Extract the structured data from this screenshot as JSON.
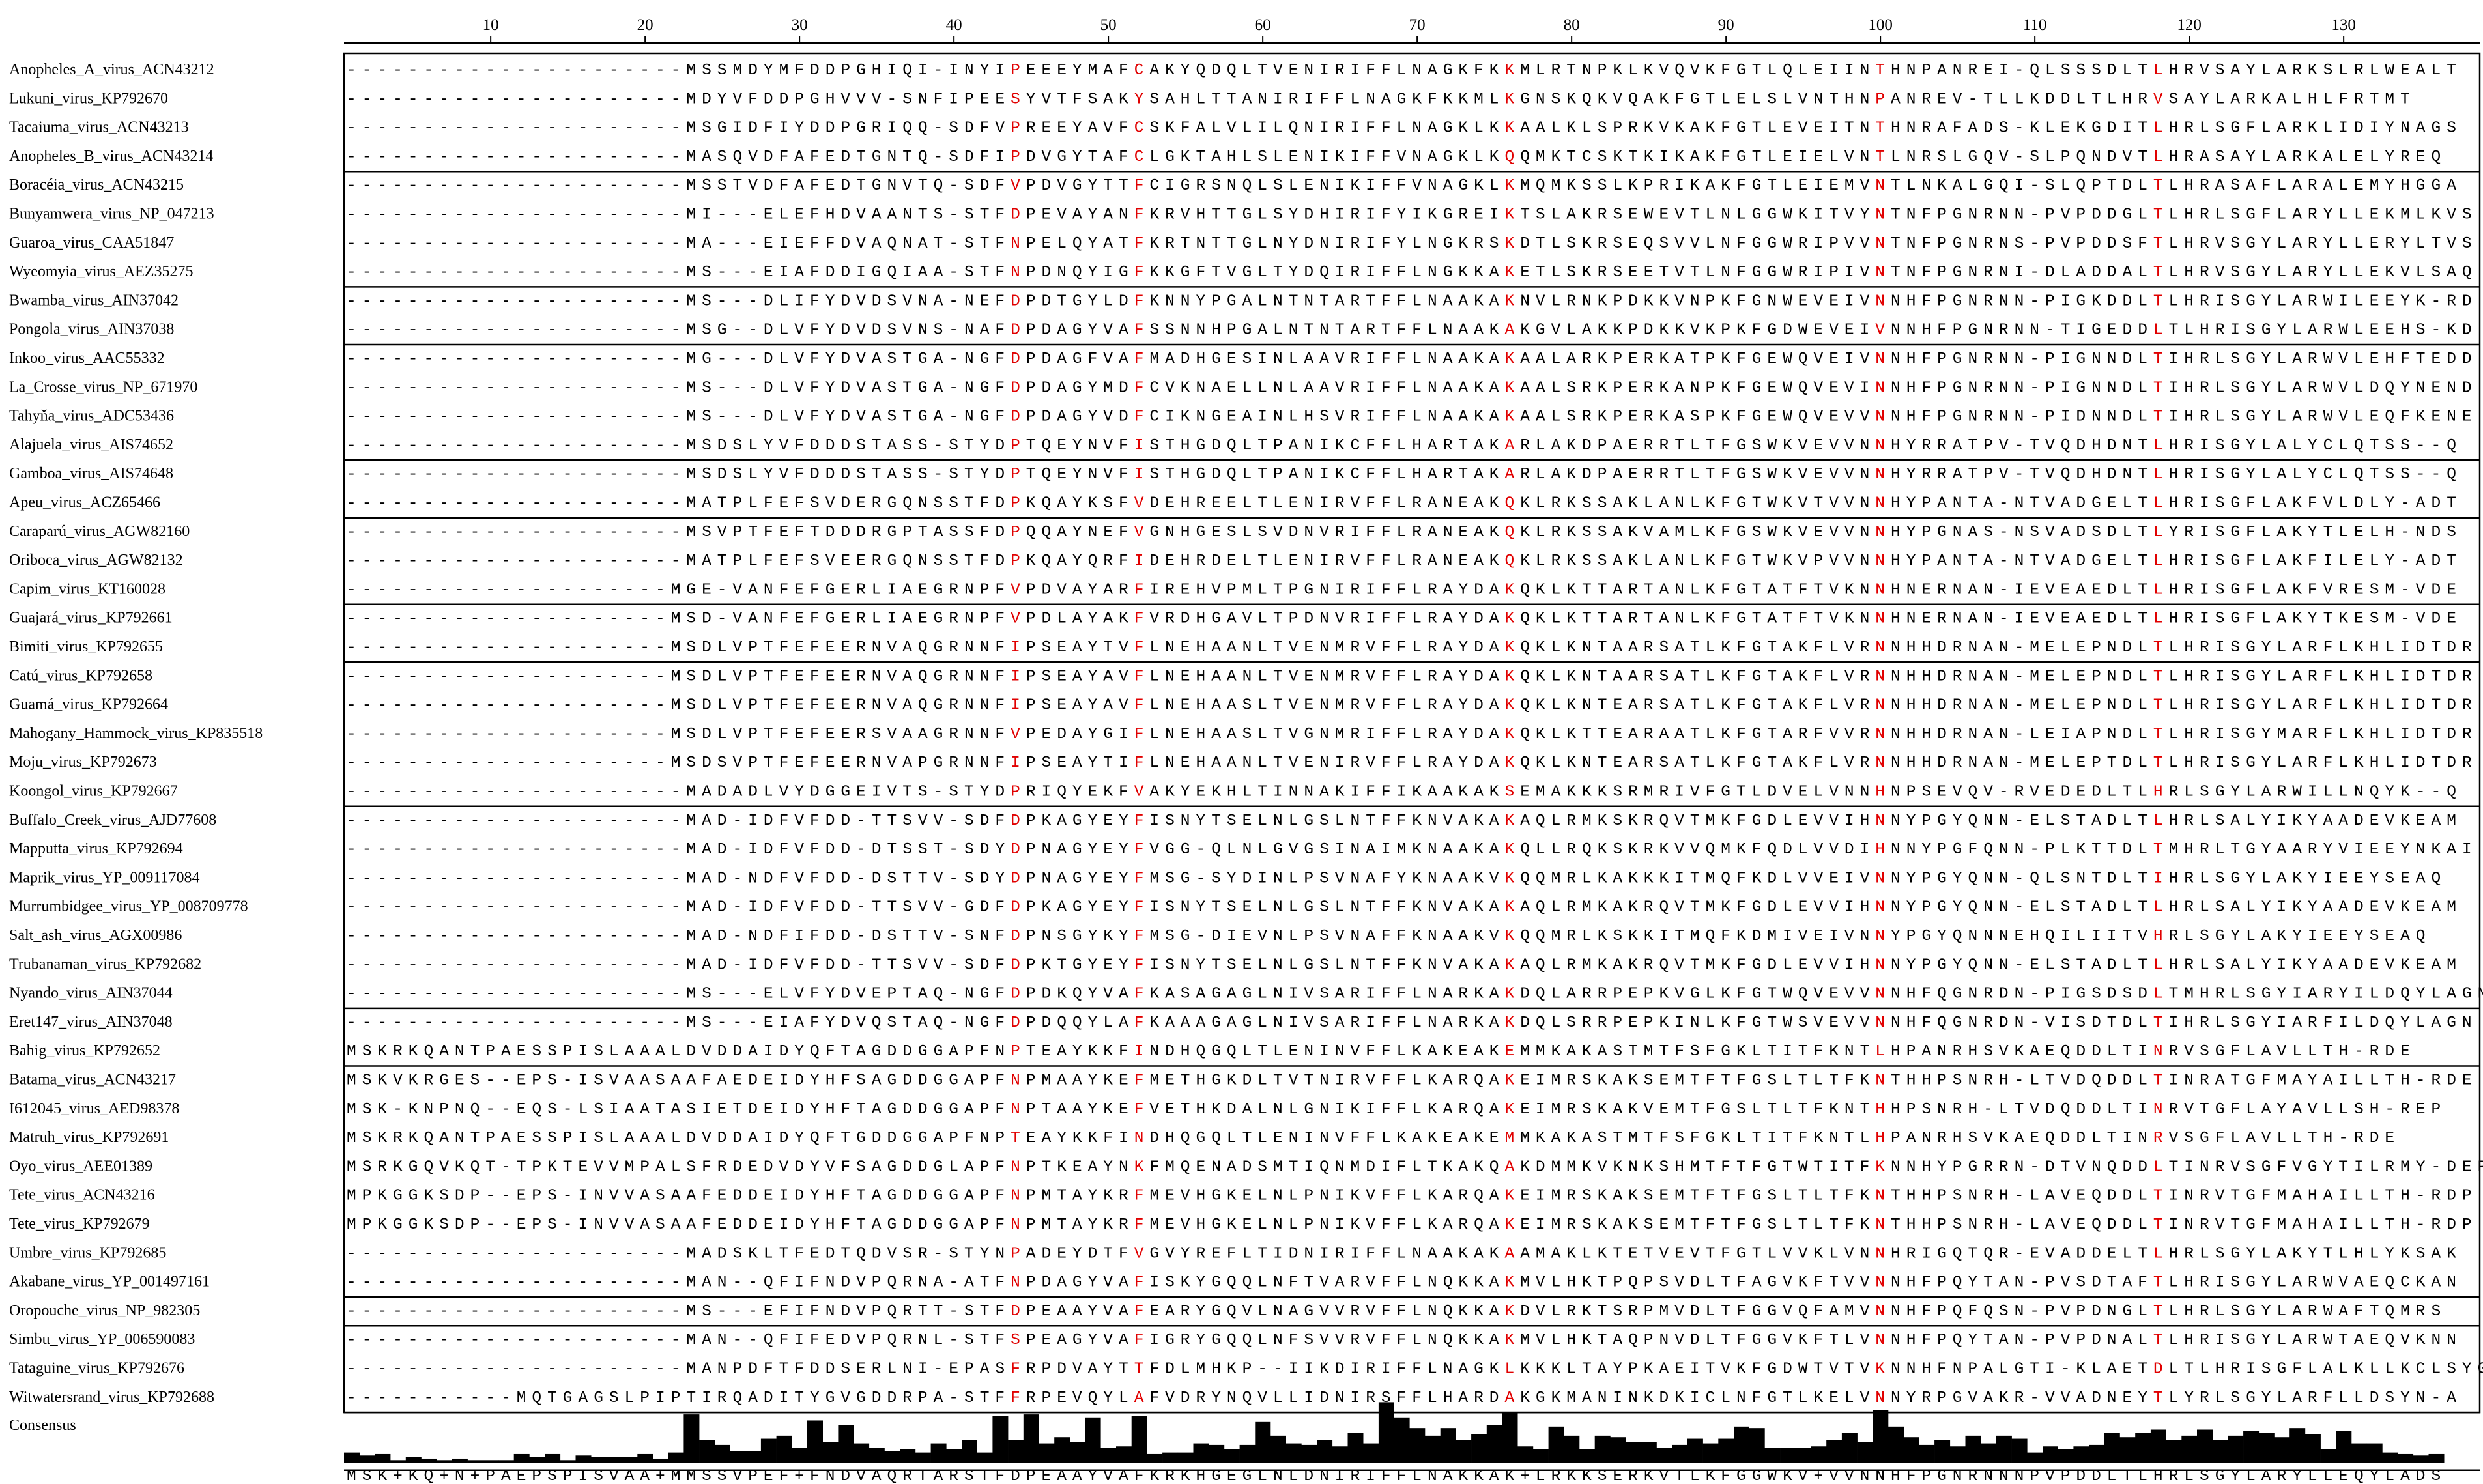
{
  "ruler": {
    "labels": [
      "10",
      "20",
      "30",
      "40",
      "50",
      "60",
      "70",
      "80",
      "90",
      "100",
      "110",
      "120",
      "130"
    ]
  },
  "consensus_label": "Consensus",
  "consensus_sequence": "MSK+KQ+N+PAEPSPISVAA+MMSSVPEF+FNDVAQRTARSTFDPEAAYVAFKRKHGEGLNLDNIRIFFLNAKKAK+LRKKSERKVTLKFGGWKV+VVNNHFPGNRNNNPVPDDLTLHRLSGYLARYLLEQYLADS",
  "highlight_columns": [
    44,
    52,
    76,
    100,
    118
  ],
  "group_breaks": [
    4,
    8,
    10,
    14,
    16,
    19,
    21,
    26,
    33,
    35,
    43,
    44,
    47,
    49
  ],
  "sequences": [
    {
      "name": "Anopheles_A_virus_ACN43212",
      "seq": "----------------------MSSMDYMFDDPGHIQI-INYIPEEEYMAFCAKYQDQLTVENIRIFFLNAGKFKKMLRTNPKLKVQVKFGTLQLEIINTHNPANREI-QLSSSDLTLHRVSAYLARKSLRLWEALT"
    },
    {
      "name": "Lukuni_virus_KP792670",
      "seq": "----------------------MDYVFDDPGHVVV-SNFIPEESYVTFSAKYSAHLTTANIRIFFLNAGKFKKMLKGNSKQKVQAKFGTLELSLVNTHNPANREV-TLLKDDLTLHRVSAYLARKALHLFRTMT"
    },
    {
      "name": "Tacaiuma_virus_ACN43213",
      "seq": "----------------------MSGIDFIYDDPGRIQQ-SDFVPREEYAVFCSKFALVLILQNIRIFFLNAGKLKKAALKLSPRKVKAKFGTLEVEITNTHNRAFADS-KLEKGDITLHRLSGFLARKLIDIYNAGS"
    },
    {
      "name": "Anopheles_B_virus_ACN43214",
      "seq": "----------------------MASQVDFAFEDTGNTQ-SDFIPDVGYTAFCLGKTAHLSLENIKIFFVNAGKLKQQMKTCSKTKIKAKFGTLEIELVNTLNRSLGQV-SLPQNDVTLHRASAYLARKALELYREQ"
    },
    {
      "name": "Boracéia_virus_ACN43215",
      "seq": "----------------------MSSTVDFAFEDTGNVTQ-SDFVPDVGYTTFCIGRSNQLSLENIKIFFVNAGKLKMQMKSSLKPRIKAKFGTLEIEMVNTLNKALGQI-SLQPTDLTLHRASAFLARALEMYHGGA"
    },
    {
      "name": "Bunyamwera_virus_NP_047213",
      "seq": "----------------------MI---ELEFHDVAANTS-STFDPEVAYANFKRVHTTGLSYDHIRIFYIKGREIKTSLAKRSEWEVTLNLGGWKITVYNTNFPGNRNN-PVPDDGLTLHRLSGFLARYLLEKMLKVS"
    },
    {
      "name": "Guaroa_virus_CAA51847",
      "seq": "----------------------MA---EIEFFDVAQNAT-STFNPELQYATFKRTNTTGLNYDNIRIFYLNGKRSKDTLSKRSEQSVVLNFGGWRIPVVNTNFPGNRNS-PVPDDSFTLHRVSGYLARYLLERYLTVS"
    },
    {
      "name": "Wyeomyia_virus_AEZ35275",
      "seq": "----------------------MS---EIAFDDIGQIAA-STFNPDNQYIGFKKGFTVGLTYDQIRIFFLNGKKAKETLSKRSEETVTLNFGGWRIPIVNTNFPGNRNI-DLADDALTLHRVSGYLARYLLEKVLSAQ"
    },
    {
      "name": "Bwamba_virus_AIN37042",
      "seq": "----------------------MS---DLIFYDVDSVNA-NEFDPDTGYLDFKNNYPGALNTNTARTFFLNAAKAKNVLRNKPDKKVNPKFGNWEVEIVNNHFPGNRNN-PIGKDDLTLHRISGYLARWILEEYK-RD"
    },
    {
      "name": "Pongola_virus_AIN37038",
      "seq": "----------------------MSG--DLVFYDVDSVNS-NAFDPDAGYVAFSSNNHPGALNTNTARTFFLNAAKAKGVLAKKPDKKVKPKFGDWEVEIVNNHFPGNRNN-TIGEDDLTLHRISGYLARWLEEHS-KD"
    },
    {
      "name": "Inkoo_virus_AAC55332",
      "seq": "----------------------MG---DLVFYDVASTGA-NGFDPDAGFVAFMADHGESINLAAVRIFFLNAAKAKAALARKPERKATPKFGEWQVEIVNNHFPGNRNN-PIGNNDLTIHRLSGYLARWVLEHFTEDD"
    },
    {
      "name": "La_Crosse_virus_NP_671970",
      "seq": "----------------------MS---DLVFYDVASTGA-NGFDPDAGYMDFCVKNAELLNLAAVRIFFLNAAKAKAALSRKPERKANPKFGEWQVEVINNHFPGNRNN-PIGNNDLTIHRLSGYLARWVLDQYNEND"
    },
    {
      "name": "Tahyňa_virus_ADC53436",
      "seq": "----------------------MS---DLVFYDVASTGA-NGFDPDAGYVDFCIKNGEAINLHSVRIFFLNAAKAKAALSRKPERKASPKFGEWQVEVVNNHFPGNRNN-PIDNNDLTIHRLSGYLARWVLEQFKENE"
    },
    {
      "name": "Alajuela_virus_AIS74652",
      "seq": "----------------------MSDSLYVFDDDSTASS-STYDPTQEYNVFISTHGDQLTPANIKCFFLHARTAKARLAKDPAERRTLTFGSWKVEVVNNHYRRATPV-TVQDHDNTLHRISGYLALYCLQTSS--Q"
    },
    {
      "name": "Gamboa_virus_AIS74648",
      "seq": "----------------------MSDSLYVFDDDSTASS-STYDPTQEYNVFISTHGDQLTPANIKCFFLHARTAKARLAKDPAERRTLTFGSWKVEVVNNHYRRATPV-TVQDHDNTLHRISGYLALYCLQTSS--Q"
    },
    {
      "name": "Apeu_virus_ACZ65466",
      "seq": "----------------------MATPLFEFSVDERGQNSSTFDPKQAYKSFVDEHREELTLENIRVFFLRANEAKQKLRKSSAKLANLKFGTWKVTVVNNHYPANTA-NTVADGELTLHRISGFLAKFVLDLY-ADT"
    },
    {
      "name": "Caraparú_virus_AGW82160",
      "seq": "----------------------MSVPTFEFTDDDRGPTASSFDPQQAYNEFVGNHGESLSVDNVRIFFLRANEAKQKLRKSSAKVAMLKFGSWKVEVVNNHYPGNAS-NSVADSDLTLYRISGFLAKYTLELH-NDS"
    },
    {
      "name": "Oriboca_virus_AGW82132",
      "seq": "----------------------MATPLFEFSVEERGQNSSTFDPKQAYQRFIDEHRDELTLENIRVFFLRANEAKQKLRKSSAKLANLKFGTWKVPVVNNHYPANTA-NTVADGELTLHRISGFLAKFILELY-ADT"
    },
    {
      "name": "Capim_virus_KT160028",
      "seq": "---------------------MGE-VANFEFGERLIAEGRNPFVPDVAYARFIREHVPMLTPGNIRIFFLRAYDAKQKLKTTARTANLKFGTATFTVKNNHNERNAN-IEVEAEDLTLHRISGFLAKFVRESM-VDE"
    },
    {
      "name": "Guajará_virus_KP792661",
      "seq": "---------------------MSD-VANFEFGERLIAEGRNPFVPDLAYAKFVRDHGAVLTPDNVRIFFLRAYDAKQKLKTTARTANLKFGTATFTVKNNHNERNAN-IEVEAEDLTLHRISGFLAKYTKESM-VDE"
    },
    {
      "name": "Bimiti_virus_KP792655",
      "seq": "---------------------MSDLVPTFEFEERNVAQGRNNFIPSEAYTVFLNEHAANLTVENMRVFFLRAYDAKQKLKNTAARSATLKFGTAKFLVRNNHHDRNAN-MELEPNDLTLHRISGYLARFLKHLIDTDR"
    },
    {
      "name": "Catú_virus_KP792658",
      "seq": "---------------------MSDLVPTFEFEERNVAQGRNNFIPSEAYAVFLNEHAANLTVENMRVFFLRAYDAKQKLKNTAARSATLKFGTAKFLVRNNHHDRNAN-MELEPNDLTLHRISGYLARFLKHLIDTDR"
    },
    {
      "name": "Guamá_virus_KP792664",
      "seq": "---------------------MSDLVPTFEFEERNVAQGRNNFIPSEAYAVFLNEHAASLTVENMRVFFLRAYDAKQKLKNTEARSATLKFGTAKFLVRNNHHDRNAN-MELEPNDLTLHRISGYLARFLKHLIDTDR"
    },
    {
      "name": "Mahogany_Hammock_virus_KP835518",
      "seq": "---------------------MSDLVPTFEFEERSVAAGRNNFVPEDAYGIFLNEHAASLTVGNMRIFFLRAYDAKQKLKTTEARAATLKFGTARFVVRNNHHDRNAN-LEIAPNDLTLHRISGYMARFLKHLIDTDR"
    },
    {
      "name": "Moju_virus_KP792673",
      "seq": "---------------------MSDSVPTFEFEERNVAPGRNNFIPSEAYTIFLNEHAANLTVENIRVFFLRAYDAKQKLKNTEARSATLKFGTAKFLVRNNHHDRNAN-MELEPTDLTLHRISGYLARFLKHLIDTDR"
    },
    {
      "name": "Koongol_virus_KP792667",
      "seq": "----------------------MADADLVYDGGEIVTS-STYDPRIQYEKFVAKYEKHLTINNAKIFFIKAAKAKSEMAKKKSRMRIVFGTLDVELVNNHNPSEVQV-RVEDEDLTLHRLSGYLARWILLNQYK--Q"
    },
    {
      "name": "Buffalo_Creek_virus_AJD77608",
      "seq": "----------------------MAD-IDFVFDD-TTSVV-SDFDPKAGYEYFISNYTSELNLGSLNTFFKNVAKAKAQLRMKSKRQVTMKFGDLEVVIHNNYPGYQNN-ELSTADLTLHRLSALYIKYAADEVKEAM"
    },
    {
      "name": "Mapputta_virus_KP792694",
      "seq": "----------------------MAD-IDFVFDD-DTSST-SDYDPNAGYEYFVGG-QLNLGVGSINAIMKNAAKAKQLLRQKSKRKVVQMKFQDLVVDIHNNYPGFQNN-PLKTTDLTMHRLTGYAARYVIEEYNKAI"
    },
    {
      "name": "Maprik_virus_YP_009117084",
      "seq": "----------------------MAD-NDFVFDD-DSTTV-SDYDPNAGYEYFMSG-SYDINLPSVNAFYKNAAKVKQQMRLKAKKKITMQFKDLVVEIVNNYPGYQNN-QLSNTDLTIHRLSGYLAKYIEEYSEAQ"
    },
    {
      "name": "Murrumbidgee_virus_YP_008709778",
      "seq": "----------------------MAD-IDFVFDD-TTSVV-GDFDPKAGYEYFISNYTSELNLGSLNTFFKNVAKAKAQLRMKAKRQVTMKFGDLEVVIHNNYPGYQNN-ELSTADLTLHRLSALYIKYAADEVKEAM"
    },
    {
      "name": "Salt_ash_virus_AGX00986",
      "seq": "----------------------MAD-NDFIFDD-DSTTV-SNFDPNSGYKYFMSG-DIEVNLPSVNAFFKNAAKVKQQMRLKSKKITMQFKDMIVEIVNNYPGYQNNNEHQILIITVHRLSGYLAKYIEEYSEAQ"
    },
    {
      "name": "Trubanaman_virus_KP792682",
      "seq": "----------------------MAD-IDFVFDD-TTSVV-SDFDPKTGYEYFISNYTSELNLGSLNTFFKNVAKAKAQLRMKAKRQVTMKFGDLEVVIHNNYPGYQNN-ELSTADLTLHRLSALYIKYAADEVKEAM"
    },
    {
      "name": "Nyando_virus_AIN37044",
      "seq": "----------------------MS---ELVFYDVEPTAQ-NGFDPDKQYVAFKASAGAGLNIVSARIFFLNARKAKDQLARRPEPKVGLKFGTWQVEVVNNHFQGNRDN-PIGSDSDLTMHRLSGYIARYILDQYLAGN"
    },
    {
      "name": "Eret147_virus_AIN37048",
      "seq": "----------------------MS---EIAFYDVQSTAQ-NGFDPDQQYLAFKAAAGAGLNIVSARIFFLNARKAKDQLSRRPEPKINLKFGTWSVEVVNNHFQGNRDN-VISDTDLTIHRLSGYIARFILDQYLAGN"
    },
    {
      "name": "Bahig_virus_KP792652",
      "seq": "MSKRKQANTPAESSPISLAAALDVDDAIDYQFTAGDDGGAPFNPTEAYKKFINDHQGQLTLENINVFFLKAKEAKEMMKAKASTMTFSFGKLTITFKNTLHPANRHSVKAEQDDLTINRVSGFLAVLLTH-RDE"
    },
    {
      "name": "Batama_virus_ACN43217",
      "seq": "MSKVKRGES--EPS-ISVAASAAFAEDEIDYHFSAGDDGGAPFNPMAAYKEFMETHGKDLTVTNIRVFFLKARQAKEIMRSKAKSEMTFTFGSLTLTFKNTHHPSNRH-LTVDQDDLTINRATGFMAYAILLTH-RDE"
    },
    {
      "name": "I612045_virus_AED98378",
      "seq": "MSK-KNPNQ--EQS-LSIAATASIETDEIDYHFTAGDDGGAPFNPTAAYKEFVETHKDALNLGNIKIFFLKARQAKEIMRSKAKVEMTFGSLTLTFKNTHHPSNRH-LTVDQDDLTINRVTGFLAYAVLLSH-REP"
    },
    {
      "name": "Matruh_virus_KP792691",
      "seq": "MSKRKQANTPAESSPISLAAALDVDDAIDYQFTGDDGGAPFNPTEAYKKFINDHQGQLTLENINVFFLKAKEAKEMMKAKASTMTFSFGKLTITFKNTLHPANRHSVKAEQDDLTINRVSGFLAVLLTH-RDE"
    },
    {
      "name": "Oyo_virus_AEE01389",
      "seq": "MSRKGQVKQT-TPKTEVVMPALSFRDEDVDYVFSAGDDGLAPFNPTKEAYNKFMQENADSMTIQNMDIFLTKAKQAKDMMKVKNKSHMTFTFGTWTITFKNNHYPGRRN-DTVNQDDLTINRVSGFVGYTILRMY-DEP"
    },
    {
      "name": "Tete_virus_ACN43216",
      "seq": "MPKGGKSDP--EPS-INVVASAAFEDDEIDYHFTAGDDGGAPFNPMTAYKRFMEVHGKELNLPNIKVFFLKARQAKEIMRSKAKSEMTFTFGSLTLTFKNTHHPSNRH-LAVEQDDLTINRVTGFMAHAILLTH-RDP"
    },
    {
      "name": "Tete_virus_KP792679",
      "seq": "MPKGGKSDP--EPS-INVVASAAFEDDEIDYHFTAGDDGGAPFNPMTAYKRFMEVHGKELNLPNIKVFFLKARQAKEIMRSKAKSEMTFTFGSLTLTFKNTHHPSNRH-LAVEQDDLTINRVTGFMAHAILLTH-RDP"
    },
    {
      "name": "Umbre_virus_KP792685",
      "seq": "----------------------MADSKLTFEDTQDVSR-STYNPADEYDTFVGVYREFLTIDNIRIFFLNAAKAKAAMAKLKTETVEVTFGTLVVKLVNNHRIGQTQR-EVADDELTLHRLSGYLAKYTLHLYKSAK"
    },
    {
      "name": "Akabane_virus_YP_001497161",
      "seq": "----------------------MAN--QFIFNDVPQRNA-ATFNPDAGYVAFISKYGQQLNFTVARVFFLNQKKAKMVLHKTPQPSVDLTFAGVKFTVVNNHFPQYTAN-PVSDTAFTLHRISGYLARWVAEQCKAN"
    },
    {
      "name": "Oropouche_virus_NP_982305",
      "seq": "----------------------MS---EFIFNDVPQRTT-STFDPEAAYVAFEARYGQVLNAGVVRVFFLNQKKAKDVLRKTSRPMVDLTFGGVQFAMVNNHFPQFQSN-PVPDNGLTLHRLSGYLARWAFTQMRS"
    },
    {
      "name": "Simbu_virus_YP_006590083",
      "seq": "----------------------MAN--QFIFEDVPQRNL-STFSPEAGYVAFIGRYGQQLNFSVVRVFFLNQKKAKMVLHKTAQPNVDLTFGGVKFTLVNNHFPQYTAN-PVPDNALTLHRISGYLARWTAEQVKNN"
    },
    {
      "name": "Tataguine_virus_KP792676",
      "seq": "----------------------MANPDFTFDDSERLNI-EPASFRPDVAYTTFDLMHKP--IIKDIRIFFLNAGKLKKKLTAYPKAEITVKFGDWTVTVKNNHFNPALGTI-KLAETDLTLHRISGFLALKLLKCLSYGQ"
    },
    {
      "name": "Witwatersrand_virus_KP792688",
      "seq": "-----------MQTGAGSLPIPTIRQADITYGVGDDRPA-STFFRPEVQYLAFVDRYNQVLLIDNIRSFFLHARDAKGKMANINKDKICLNFGTLKELVNNYRPGVAKR-VVADNEYTLYRLSGYLARFLLDSYN-A"
    }
  ]
}
